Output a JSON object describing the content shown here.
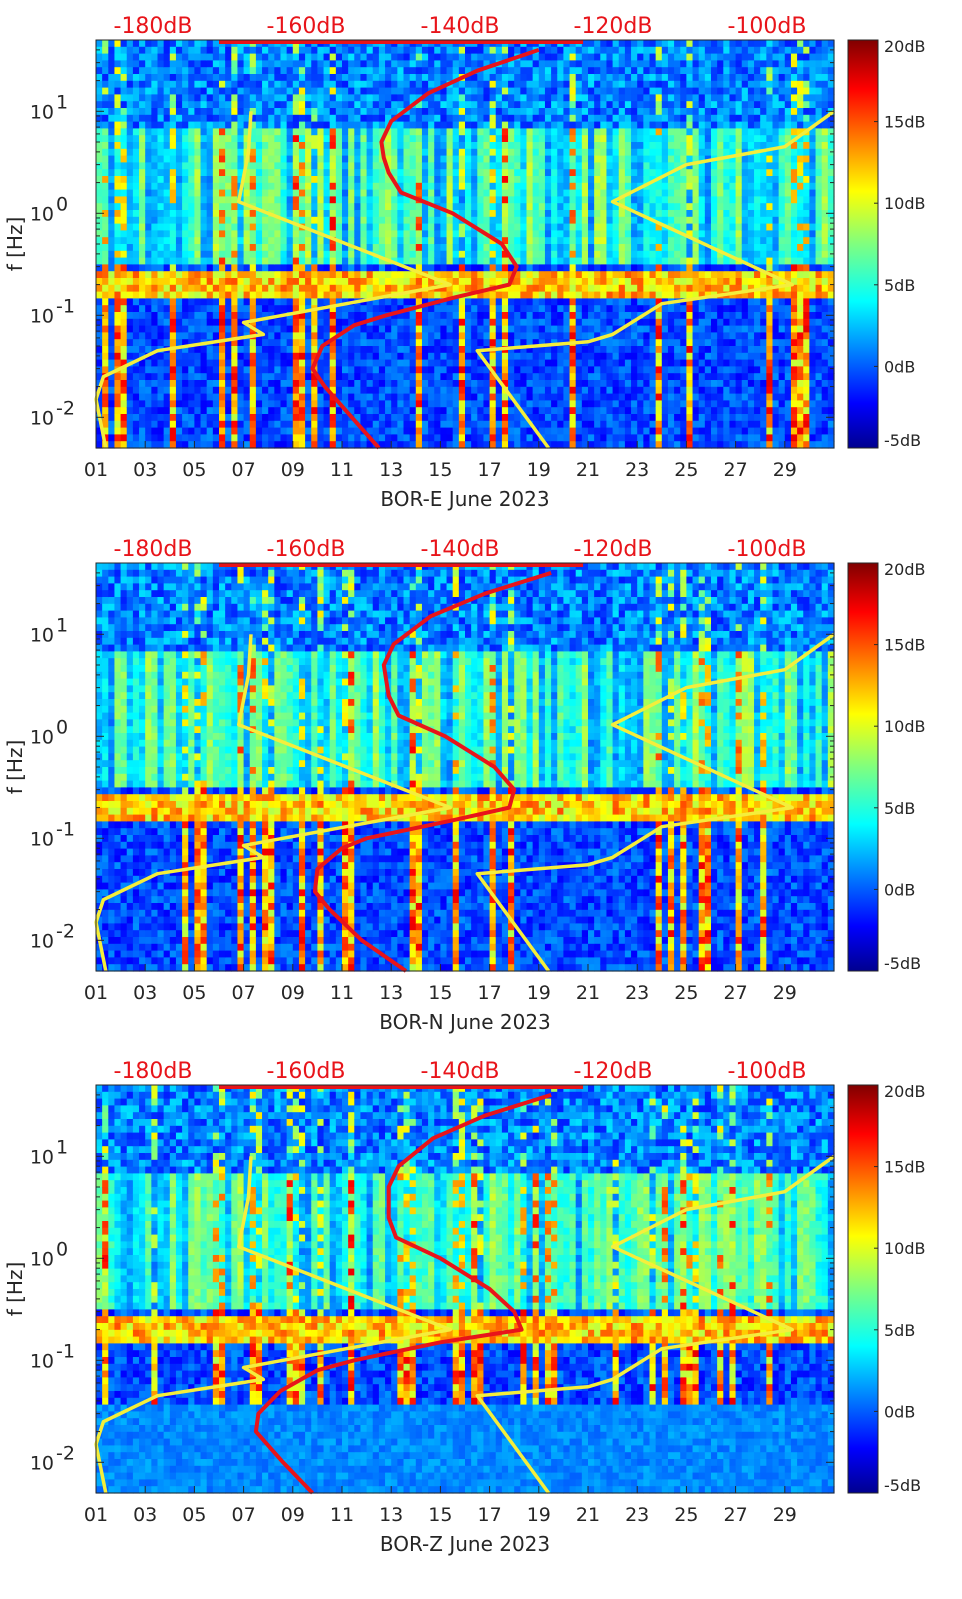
{
  "figure": {
    "colorbar": {
      "ticks": [
        "20dB",
        "15dB",
        "10dB",
        "5dB",
        "0dB",
        "-5dB"
      ],
      "range_db": [
        -5,
        20
      ],
      "colormap": "jet"
    },
    "top_db_labels": [
      "-180dB",
      "-160dB",
      "-140dB",
      "-120dB",
      "-100dB"
    ],
    "colors": {
      "model_curve": "#f4ee3c",
      "psd_curve": "#e8141a"
    }
  },
  "chart_data": [
    {
      "type": "heatmap",
      "xlabel": "BOR-E June 2023",
      "ylabel": "f [Hz]",
      "x_ticks": [
        "01",
        "03",
        "05",
        "07",
        "09",
        "11",
        "13",
        "15",
        "17",
        "19",
        "21",
        "23",
        "25",
        "27",
        "29"
      ],
      "y_ticks": [
        "10^-2",
        "10^-1",
        "10^0",
        "10^1"
      ],
      "y_scale": "log",
      "ylim": [
        0.005,
        50
      ],
      "xlim_day": [
        1,
        31
      ],
      "noise_model_lines": {
        "low": {
          "f": [
            0.005,
            0.015,
            0.025,
            0.045,
            0.065,
            0.085,
            0.2,
            1.3,
            4.0,
            10.0
          ],
          "day": [
            1.4,
            1.0,
            1.3,
            3.5,
            7.8,
            7.0,
            15.4,
            6.8,
            7.2,
            7.3
          ]
        },
        "high": {
          "f": [
            0.005,
            0.045,
            0.055,
            0.065,
            0.13,
            0.2,
            1.3,
            3.0,
            4.5,
            10.0
          ],
          "day": [
            19.4,
            16.5,
            21.0,
            22.0,
            24.0,
            29.3,
            22.0,
            25.0,
            29.0,
            31.0
          ]
        }
      },
      "psd_curve": {
        "f": [
          0.005,
          0.01,
          0.02,
          0.03,
          0.05,
          0.08,
          0.1,
          0.15,
          0.2,
          0.3,
          0.5,
          1.0,
          1.6,
          2.5,
          3.5,
          5.0,
          8.0,
          15.0,
          25.0,
          40.0
        ],
        "day": [
          12.5,
          11.4,
          10.3,
          9.8,
          10.2,
          11.5,
          12.8,
          15.6,
          17.8,
          18.1,
          17.5,
          15.5,
          13.4,
          12.9,
          12.7,
          12.6,
          13.0,
          14.5,
          16.5,
          19.0
        ]
      }
    },
    {
      "type": "heatmap",
      "xlabel": "BOR-N June 2023",
      "ylabel": "f [Hz]",
      "x_ticks": [
        "01",
        "03",
        "05",
        "07",
        "09",
        "11",
        "13",
        "15",
        "17",
        "19",
        "21",
        "23",
        "25",
        "27",
        "29"
      ],
      "y_ticks": [
        "10^-2",
        "10^-1",
        "10^0",
        "10^1"
      ],
      "y_scale": "log",
      "ylim": [
        0.005,
        50
      ],
      "xlim_day": [
        1,
        31
      ],
      "noise_model_lines": {
        "low": {
          "f": [
            0.005,
            0.015,
            0.025,
            0.045,
            0.065,
            0.085,
            0.2,
            1.3,
            4.0,
            10.0
          ],
          "day": [
            1.4,
            1.0,
            1.3,
            3.5,
            7.8,
            7.0,
            15.4,
            6.8,
            7.2,
            7.3
          ]
        },
        "high": {
          "f": [
            0.005,
            0.045,
            0.055,
            0.065,
            0.13,
            0.2,
            1.3,
            3.0,
            4.5,
            10.0
          ],
          "day": [
            19.4,
            16.5,
            21.0,
            22.0,
            24.0,
            29.3,
            22.0,
            25.0,
            29.0,
            31.0
          ]
        }
      },
      "psd_curve": {
        "f": [
          0.005,
          0.01,
          0.02,
          0.03,
          0.05,
          0.08,
          0.1,
          0.15,
          0.2,
          0.3,
          0.5,
          1.0,
          1.6,
          2.5,
          3.5,
          5.0,
          8.0,
          15.0,
          25.0,
          40.0
        ],
        "day": [
          13.6,
          11.8,
          10.5,
          9.9,
          10.0,
          11.0,
          12.0,
          15.5,
          17.8,
          18.0,
          17.2,
          15.2,
          13.3,
          12.9,
          12.8,
          12.7,
          13.1,
          14.6,
          16.8,
          19.5
        ]
      }
    },
    {
      "type": "heatmap",
      "xlabel": "BOR-Z June 2023",
      "ylabel": "f [Hz]",
      "x_ticks": [
        "01",
        "03",
        "05",
        "07",
        "09",
        "11",
        "13",
        "15",
        "17",
        "19",
        "21",
        "23",
        "25",
        "27",
        "29"
      ],
      "y_ticks": [
        "10^-2",
        "10^-1",
        "10^0",
        "10^1"
      ],
      "y_scale": "log",
      "ylim": [
        0.005,
        50
      ],
      "xlim_day": [
        1,
        31
      ],
      "noise_model_lines": {
        "low": {
          "f": [
            0.005,
            0.015,
            0.025,
            0.045,
            0.065,
            0.085,
            0.2,
            1.3,
            4.0,
            10.0
          ],
          "day": [
            1.4,
            1.0,
            1.3,
            3.5,
            7.8,
            7.0,
            15.4,
            6.8,
            7.2,
            7.3
          ]
        },
        "high": {
          "f": [
            0.005,
            0.045,
            0.055,
            0.065,
            0.13,
            0.2,
            1.3,
            3.0,
            4.5,
            10.0
          ],
          "day": [
            19.4,
            16.5,
            21.0,
            22.0,
            24.0,
            29.3,
            22.0,
            25.0,
            29.0,
            31.0
          ]
        }
      },
      "psd_curve": {
        "f": [
          0.005,
          0.01,
          0.02,
          0.03,
          0.05,
          0.08,
          0.1,
          0.15,
          0.2,
          0.3,
          0.5,
          1.0,
          1.6,
          2.5,
          3.5,
          5.0,
          8.0,
          15.0,
          25.0,
          40.0
        ],
        "day": [
          9.8,
          8.6,
          7.5,
          7.6,
          8.5,
          10.0,
          11.5,
          15.0,
          18.3,
          18.0,
          17.0,
          15.0,
          13.2,
          12.9,
          12.9,
          12.9,
          13.3,
          14.7,
          16.8,
          19.5
        ]
      }
    }
  ]
}
